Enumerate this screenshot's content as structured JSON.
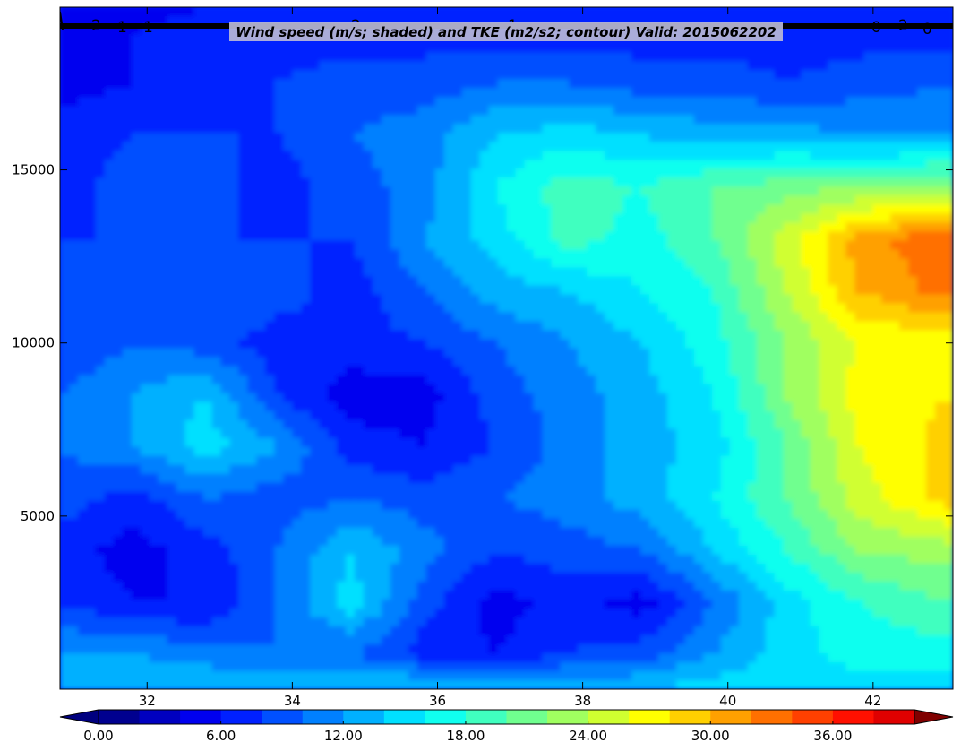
{
  "chart_data": {
    "type": "heatmap",
    "title": "Wind speed (m/s; shaded) and TKE (m2/s2; contour) Valid: 2015062202",
    "xlabel": "",
    "ylabel": "",
    "xlim": [
      30.8,
      43.1
    ],
    "ylim": [
      0,
      19700
    ],
    "x_ticks": [
      32,
      34,
      36,
      38,
      40,
      42
    ],
    "x_tick_labels": [
      "32",
      "34",
      "36",
      "38",
      "40",
      "42"
    ],
    "y_ticks": [
      5000,
      10000,
      15000
    ],
    "y_tick_labels": [
      "5000",
      "10000",
      "15000"
    ],
    "grid": false,
    "colorbar": {
      "orientation": "horizontal",
      "position": "bottom",
      "extend": "both",
      "levels": [
        0,
        2,
        4,
        6,
        8,
        10,
        12,
        14,
        16,
        18,
        20,
        22,
        24,
        26,
        28,
        30,
        32,
        34,
        36,
        38,
        40
      ],
      "tick_values": [
        0,
        6,
        12,
        18,
        24,
        30,
        36
      ],
      "tick_labels": [
        "0.00",
        "6.00",
        "12.00",
        "18.00",
        "24.00",
        "30.00",
        "36.00"
      ],
      "colors": [
        "#00008f",
        "#0000c0",
        "#0000ef",
        "#0020ff",
        "#0050ff",
        "#0080ff",
        "#00b0ff",
        "#00e0ff",
        "#10ffef",
        "#40ffbf",
        "#70ff8f",
        "#a0ff60",
        "#d0ff30",
        "#ffff00",
        "#ffd000",
        "#ffa000",
        "#ff7000",
        "#ff4000",
        "#ff1000",
        "#df0000"
      ],
      "under_color": "#00007f",
      "over_color": "#800000"
    },
    "tke_contour": {
      "color": "#000000",
      "labels": [
        "2",
        "1",
        "1",
        "2",
        "1",
        "0",
        "2",
        "0"
      ]
    },
    "wind_speed_field_ms": {
      "x": [
        30.8,
        31.8,
        32.8,
        33.8,
        34.8,
        35.8,
        36.8,
        37.8,
        38.8,
        39.8,
        40.8,
        41.8,
        43.1
      ],
      "y": [
        0,
        1000,
        2500,
        4000,
        5500,
        7000,
        8500,
        10000,
        11500,
        13000,
        14500,
        16000,
        17500,
        19000,
        19700
      ],
      "values": [
        [
          14,
          14,
          14,
          14,
          14,
          15,
          15,
          14,
          14,
          15,
          15,
          15,
          15
        ],
        [
          12,
          12,
          11,
          10,
          10,
          7,
          6,
          8,
          9,
          12,
          15,
          17,
          17
        ],
        [
          8,
          6,
          6,
          10,
          15,
          9,
          5,
          7,
          5,
          10,
          15,
          18,
          20
        ],
        [
          7,
          5,
          7,
          10,
          14,
          11,
          8,
          9,
          10,
          14,
          18,
          22,
          23
        ],
        [
          9,
          7,
          10,
          9,
          10,
          9,
          10,
          11,
          13,
          16,
          20,
          25,
          29
        ],
        [
          10,
          12,
          15,
          12,
          7,
          6,
          8,
          11,
          13,
          15,
          20,
          26,
          29
        ],
        [
          10,
          12,
          14,
          8,
          5,
          5,
          9,
          11,
          13,
          16,
          22,
          27,
          28
        ],
        [
          8,
          10,
          9,
          7,
          7,
          8,
          10,
          12,
          14,
          17,
          22,
          26,
          27
        ],
        [
          9,
          10,
          10,
          9,
          7,
          10,
          13,
          14,
          16,
          18,
          24,
          30,
          33
        ],
        [
          8,
          8,
          8,
          8,
          8,
          12,
          15,
          19,
          17,
          20,
          25,
          31,
          34
        ],
        [
          7,
          9,
          9,
          7,
          9,
          11,
          16,
          19,
          18,
          20,
          21,
          22,
          23
        ],
        [
          7,
          8,
          8,
          8,
          10,
          11,
          14,
          15,
          14,
          13,
          13,
          12,
          12
        ],
        [
          5,
          6,
          7,
          8,
          9,
          9,
          10,
          10,
          9,
          9,
          8,
          9,
          10
        ],
        [
          4,
          6,
          7,
          7,
          7,
          7,
          7,
          7,
          7,
          7,
          7,
          7,
          7
        ],
        [
          5,
          5,
          6,
          6,
          6,
          6,
          6,
          6,
          6,
          6,
          6,
          6,
          6
        ]
      ]
    }
  }
}
